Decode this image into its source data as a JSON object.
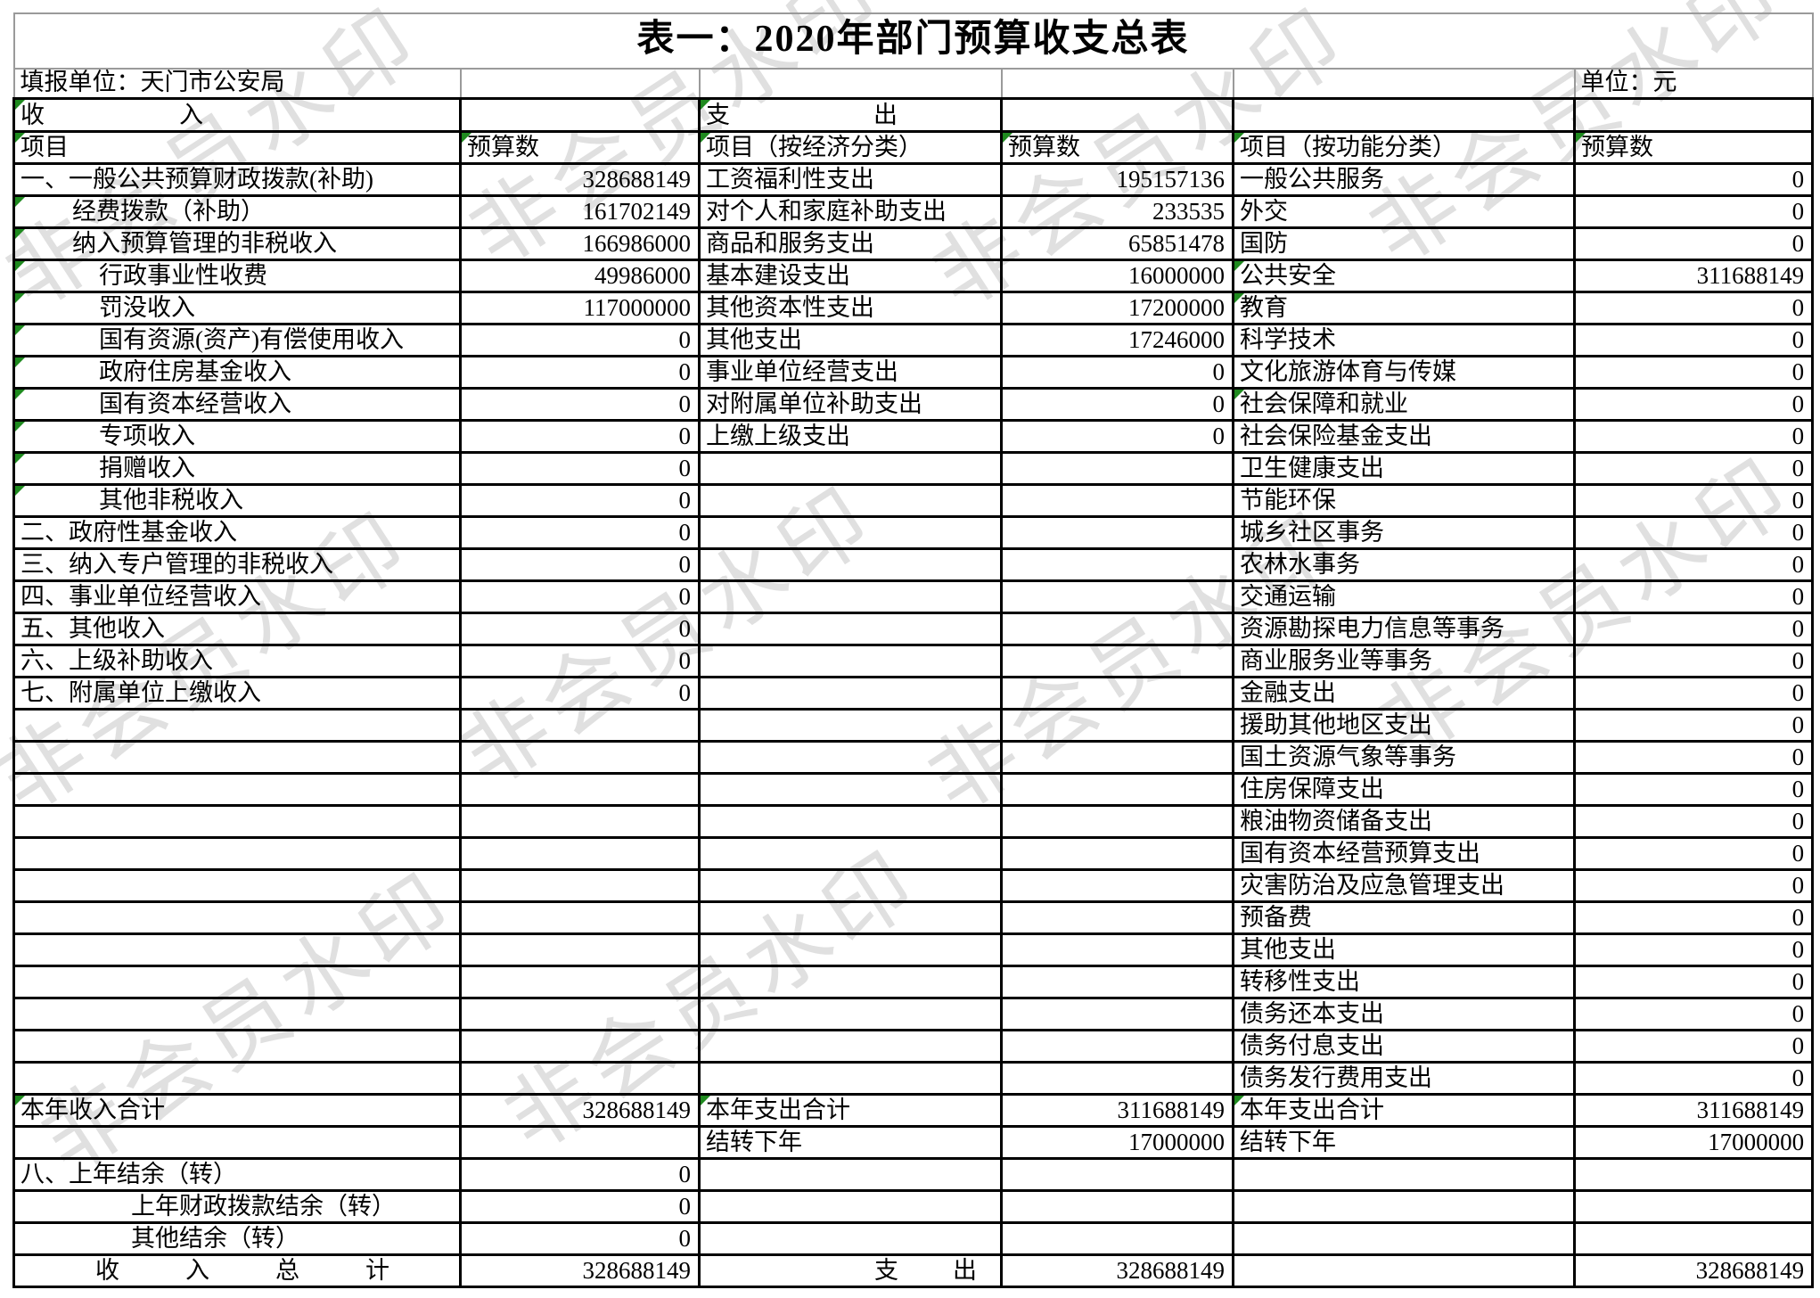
{
  "title": "表一：2020年部门预算收支总表",
  "meta": {
    "reporting_unit": "填报单位：天门市公安局",
    "unit": "单位：元"
  },
  "sections": {
    "income": "收入",
    "expenditure": "支出"
  },
  "headers": [
    "项目",
    "预算数",
    "项目（按经济分类）",
    "预算数",
    "项目（按功能分类）",
    "预算数"
  ],
  "watermark": {
    "text": "非会员水印",
    "color": "#e0e0e0"
  },
  "flag_color": "#1f8a1f",
  "grid_rows": [
    {
      "cells": [
        {
          "t": "一、一般公共预算财政拨款(补助)",
          "ind": 0
        },
        {
          "t": "328688149",
          "num": true
        },
        {
          "t": "工资福利性支出"
        },
        {
          "t": "195157136",
          "num": true
        },
        {
          "t": "一般公共服务"
        },
        {
          "t": "0",
          "num": true
        }
      ]
    },
    {
      "cells": [
        {
          "t": "经费拨款（补助）",
          "ind": 1,
          "g": true
        },
        {
          "t": "161702149",
          "num": true
        },
        {
          "t": "对个人和家庭补助支出"
        },
        {
          "t": "233535",
          "num": true
        },
        {
          "t": "外交"
        },
        {
          "t": "0",
          "num": true
        }
      ]
    },
    {
      "cells": [
        {
          "t": "纳入预算管理的非税收入",
          "ind": 1,
          "g": true
        },
        {
          "t": "166986000",
          "num": true
        },
        {
          "t": "商品和服务支出"
        },
        {
          "t": "65851478",
          "num": true
        },
        {
          "t": "国防"
        },
        {
          "t": "0",
          "num": true
        }
      ]
    },
    {
      "cells": [
        {
          "t": "行政事业性收费",
          "ind": 2,
          "g": true
        },
        {
          "t": "49986000",
          "num": true
        },
        {
          "t": "基本建设支出"
        },
        {
          "t": "16000000",
          "num": true
        },
        {
          "t": "公共安全",
          "g": true
        },
        {
          "t": "311688149",
          "num": true
        }
      ]
    },
    {
      "cells": [
        {
          "t": "罚没收入",
          "ind": 2,
          "g": true
        },
        {
          "t": "117000000",
          "num": true
        },
        {
          "t": "其他资本性支出"
        },
        {
          "t": "17200000",
          "num": true
        },
        {
          "t": "教育",
          "g": true
        },
        {
          "t": "0",
          "num": true
        }
      ]
    },
    {
      "cells": [
        {
          "t": "国有资源(资产)有偿使用收入",
          "ind": 2,
          "g": true
        },
        {
          "t": "0",
          "num": true
        },
        {
          "t": "其他支出"
        },
        {
          "t": "17246000",
          "num": true
        },
        {
          "t": "科学技术"
        },
        {
          "t": "0",
          "num": true
        }
      ]
    },
    {
      "cells": [
        {
          "t": "政府住房基金收入",
          "ind": 2,
          "g": true
        },
        {
          "t": "0",
          "num": true
        },
        {
          "t": "事业单位经营支出"
        },
        {
          "t": "0",
          "num": true
        },
        {
          "t": "文化旅游体育与传媒"
        },
        {
          "t": "0",
          "num": true
        }
      ]
    },
    {
      "cells": [
        {
          "t": "国有资本经营收入",
          "ind": 2,
          "g": true
        },
        {
          "t": "0",
          "num": true
        },
        {
          "t": "对附属单位补助支出"
        },
        {
          "t": "0",
          "num": true
        },
        {
          "t": "社会保障和就业",
          "g": true
        },
        {
          "t": "0",
          "num": true
        }
      ]
    },
    {
      "cells": [
        {
          "t": "专项收入",
          "ind": 2,
          "g": true
        },
        {
          "t": "0",
          "num": true
        },
        {
          "t": "上缴上级支出"
        },
        {
          "t": "0",
          "num": true
        },
        {
          "t": "社会保险基金支出"
        },
        {
          "t": "0",
          "num": true
        }
      ]
    },
    {
      "cells": [
        {
          "t": "捐赠收入",
          "ind": 2,
          "g": true
        },
        {
          "t": "0",
          "num": true
        },
        {},
        {},
        {
          "t": "卫生健康支出"
        },
        {
          "t": "0",
          "num": true
        }
      ]
    },
    {
      "cells": [
        {
          "t": "其他非税收入",
          "ind": 2,
          "g": true
        },
        {
          "t": "0",
          "num": true
        },
        {},
        {},
        {
          "t": "节能环保"
        },
        {
          "t": "0",
          "num": true
        }
      ]
    },
    {
      "cells": [
        {
          "t": "二、政府性基金收入",
          "ind": 0
        },
        {
          "t": "0",
          "num": true
        },
        {},
        {},
        {
          "t": "城乡社区事务"
        },
        {
          "t": "0",
          "num": true
        }
      ]
    },
    {
      "cells": [
        {
          "t": "三、纳入专户管理的非税收入",
          "ind": 0
        },
        {
          "t": "0",
          "num": true
        },
        {},
        {},
        {
          "t": "农林水事务"
        },
        {
          "t": "0",
          "num": true
        }
      ]
    },
    {
      "cells": [
        {
          "t": "四、事业单位经营收入",
          "ind": 0
        },
        {
          "t": "0",
          "num": true
        },
        {},
        {},
        {
          "t": "交通运输"
        },
        {
          "t": "0",
          "num": true
        }
      ]
    },
    {
      "cells": [
        {
          "t": "五、其他收入",
          "ind": 0
        },
        {
          "t": "0",
          "num": true
        },
        {},
        {},
        {
          "t": "资源勘探电力信息等事务"
        },
        {
          "t": "0",
          "num": true
        }
      ]
    },
    {
      "cells": [
        {
          "t": "六、上级补助收入",
          "ind": 0
        },
        {
          "t": "0",
          "num": true
        },
        {},
        {},
        {
          "t": "商业服务业等事务"
        },
        {
          "t": "0",
          "num": true
        }
      ]
    },
    {
      "cells": [
        {
          "t": "七、附属单位上缴收入",
          "ind": 0
        },
        {
          "t": "0",
          "num": true
        },
        {},
        {},
        {
          "t": "金融支出"
        },
        {
          "t": "0",
          "num": true
        }
      ]
    },
    {
      "cells": [
        {},
        {},
        {},
        {},
        {
          "t": "援助其他地区支出"
        },
        {
          "t": "0",
          "num": true
        }
      ]
    },
    {
      "cells": [
        {},
        {},
        {},
        {},
        {
          "t": "国土资源气象等事务"
        },
        {
          "t": "0",
          "num": true
        }
      ]
    },
    {
      "cells": [
        {},
        {},
        {},
        {},
        {
          "t": "住房保障支出"
        },
        {
          "t": "0",
          "num": true
        }
      ]
    },
    {
      "cells": [
        {},
        {},
        {},
        {},
        {
          "t": "粮油物资储备支出"
        },
        {
          "t": "0",
          "num": true
        }
      ]
    },
    {
      "cells": [
        {},
        {},
        {},
        {},
        {
          "t": "国有资本经营预算支出"
        },
        {
          "t": "0",
          "num": true
        }
      ]
    },
    {
      "cells": [
        {},
        {},
        {},
        {},
        {
          "t": "灾害防治及应急管理支出"
        },
        {
          "t": "0",
          "num": true
        }
      ]
    },
    {
      "cells": [
        {},
        {},
        {},
        {},
        {
          "t": "预备费"
        },
        {
          "t": "0",
          "num": true
        }
      ]
    },
    {
      "cells": [
        {},
        {},
        {},
        {},
        {
          "t": "其他支出"
        },
        {
          "t": "0",
          "num": true
        }
      ]
    },
    {
      "cells": [
        {},
        {},
        {},
        {},
        {
          "t": "转移性支出"
        },
        {
          "t": "0",
          "num": true
        }
      ]
    },
    {
      "cells": [
        {},
        {},
        {},
        {},
        {
          "t": "债务还本支出"
        },
        {
          "t": "0",
          "num": true
        }
      ]
    },
    {
      "cells": [
        {},
        {},
        {},
        {},
        {
          "t": "债务付息支出"
        },
        {
          "t": "0",
          "num": true
        }
      ]
    },
    {
      "cells": [
        {},
        {},
        {},
        {},
        {
          "t": "债务发行费用支出"
        },
        {
          "t": "0",
          "num": true
        }
      ]
    },
    {
      "cells": [
        {
          "t": "本年收入合计",
          "g": true
        },
        {
          "t": "328688149",
          "num": true
        },
        {
          "t": "本年支出合计",
          "g": true
        },
        {
          "t": "311688149",
          "num": true
        },
        {
          "t": "本年支出合计",
          "g": true
        },
        {
          "t": "311688149",
          "num": true
        }
      ]
    },
    {
      "cells": [
        {},
        {},
        {
          "t": "结转下年"
        },
        {
          "t": "17000000",
          "num": true
        },
        {
          "t": "结转下年"
        },
        {
          "t": "17000000",
          "num": true
        }
      ]
    },
    {
      "cells": [
        {
          "t": "八、上年结余（转）",
          "ind": 0
        },
        {
          "t": "0",
          "num": true
        },
        {},
        {},
        {},
        {}
      ]
    },
    {
      "cells": [
        {
          "t": "上年财政拨款结余（转）",
          "ind": 3
        },
        {
          "t": "0",
          "num": true
        },
        {},
        {},
        {},
        {}
      ]
    },
    {
      "cells": [
        {
          "t": "其他结余（转）",
          "ind": 3
        },
        {
          "t": "0",
          "num": true
        },
        {},
        {},
        {},
        {}
      ]
    },
    {
      "cells": [
        {
          "t": "收入总计",
          "dist": 330,
          "padl": 90
        },
        {
          "t": "328688149",
          "num": true
        },
        {
          "t": "支出",
          "dist": 115,
          "padl": 195
        },
        {
          "t": "328688149",
          "num": true
        },
        {},
        {
          "t": "328688149",
          "num": true
        }
      ]
    }
  ]
}
